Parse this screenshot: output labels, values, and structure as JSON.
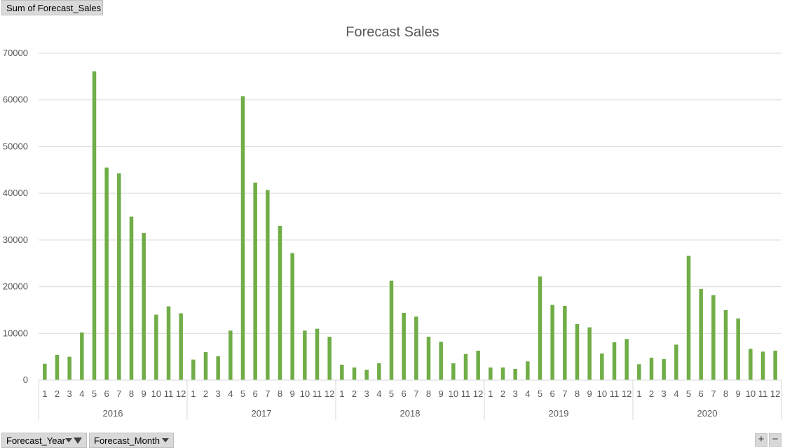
{
  "pivot": {
    "value_field": "Sum of Forecast_Sales",
    "axis_fields": [
      {
        "label": "Forecast_Year",
        "icon": "filter-dropdown-icon"
      },
      {
        "label": "Forecast_Month",
        "icon": "dropdown-arrow-icon"
      }
    ],
    "zoom_in_label": "+",
    "zoom_out_label": "−"
  },
  "chart_data": {
    "type": "bar",
    "title": "Forecast Sales",
    "xlabel": "",
    "ylabel": "",
    "ylim": [
      0,
      70000
    ],
    "yticks": [
      0,
      10000,
      20000,
      30000,
      40000,
      50000,
      60000,
      70000
    ],
    "grid": true,
    "legend": "none",
    "bar_color": "#70ad47",
    "groups": [
      "2016",
      "2017",
      "2018",
      "2019",
      "2020"
    ],
    "months": [
      "1",
      "2",
      "3",
      "4",
      "5",
      "6",
      "7",
      "8",
      "9",
      "10",
      "11",
      "12"
    ],
    "series": [
      {
        "values": [
          3500,
          5400,
          5000,
          10200,
          66100,
          45500,
          44300,
          35000,
          31500,
          14000,
          15800,
          14300,
          4400,
          6000,
          5100,
          10600,
          60800,
          42300,
          40700,
          33000,
          27200,
          10600,
          11000,
          9300,
          3300,
          2700,
          2200,
          3600,
          21300,
          14400,
          13600,
          9300,
          8200,
          3600,
          5600,
          6300,
          2700,
          2700,
          2400,
          4000,
          22200,
          16100,
          15900,
          12000,
          11300,
          5700,
          8100,
          8800,
          3400,
          4800,
          4500,
          7600,
          26600,
          19500,
          18200,
          15000,
          13200,
          6700,
          6100,
          6300
        ]
      }
    ]
  }
}
